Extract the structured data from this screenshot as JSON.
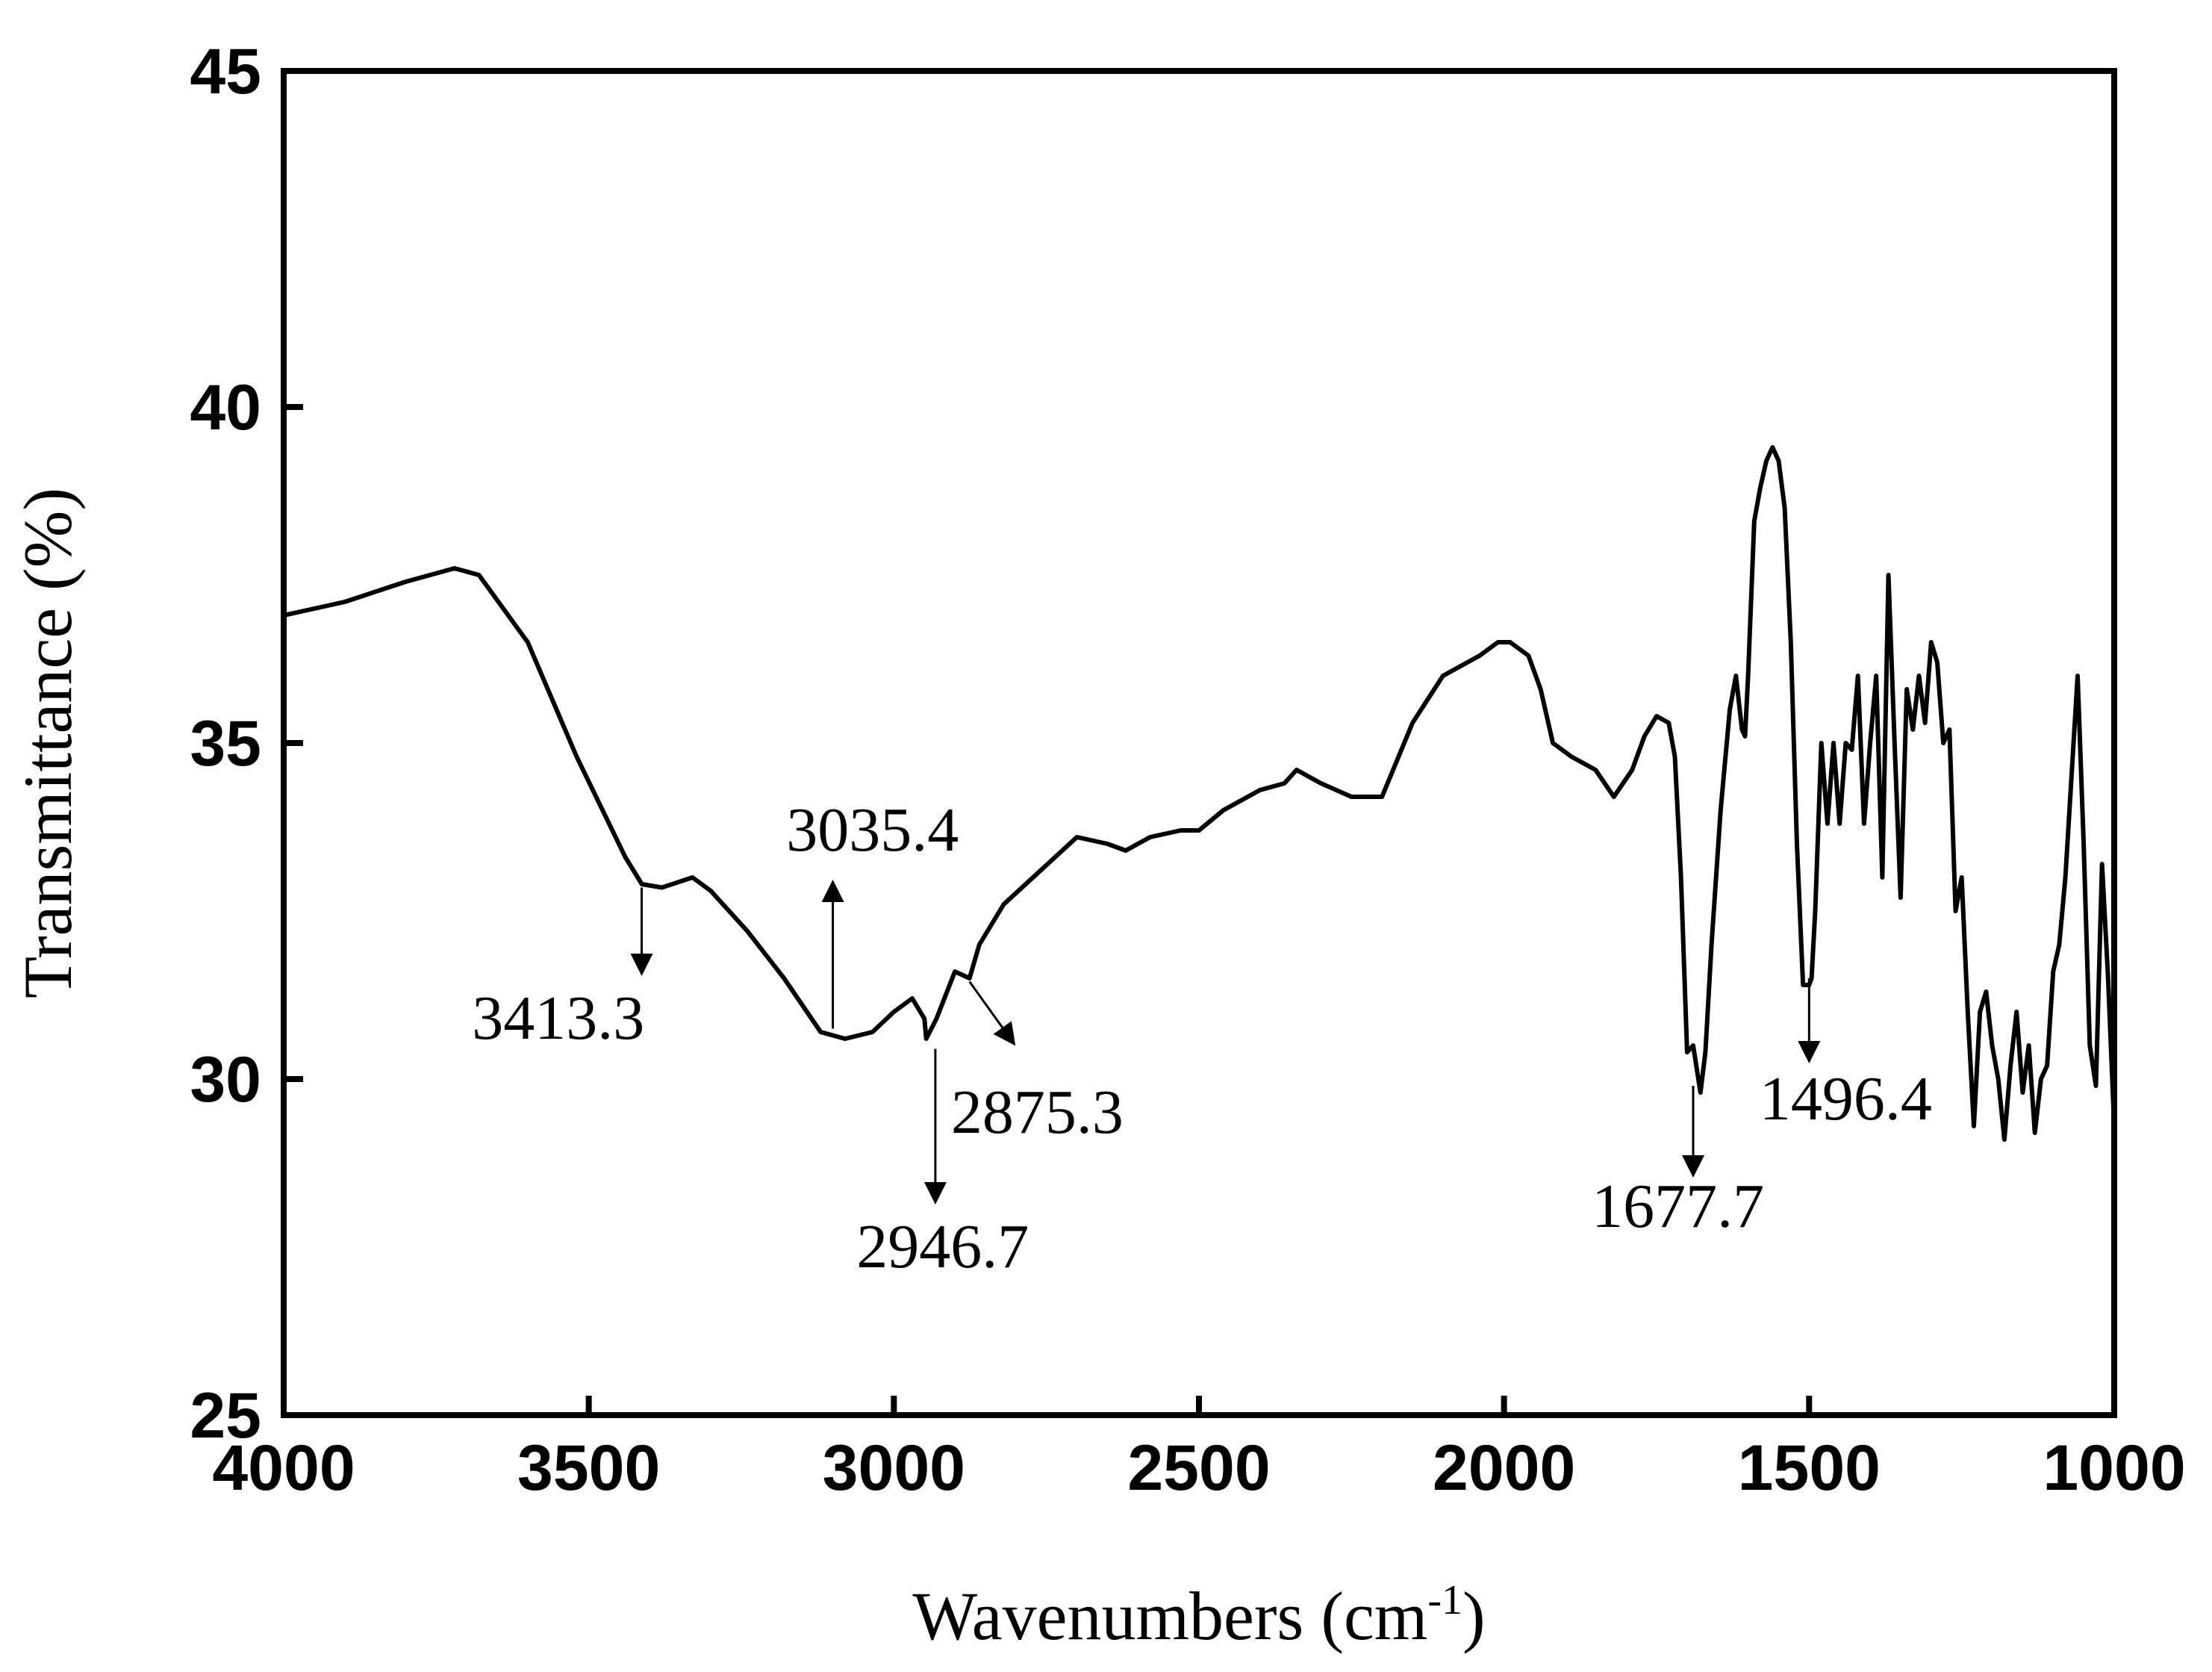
{
  "chart_data": {
    "type": "line",
    "title": "",
    "xlabel": "Wavenumbers (cm",
    "xlabel_sup": "-1",
    "xlabel_close": ")",
    "ylabel": "Transmittance (%)",
    "xlim": [
      4000,
      1000
    ],
    "ylim": [
      25,
      45
    ],
    "x_reversed": true,
    "grid": false,
    "legend": "none",
    "line_color": "#000000",
    "x_ticks": [
      4000,
      3500,
      3000,
      2500,
      2000,
      1500,
      1000
    ],
    "x_tick_labels": [
      "4000",
      "3500",
      "3000",
      "2500",
      "2000",
      "1500",
      "1000"
    ],
    "y_ticks": [
      25,
      30,
      35,
      40,
      45
    ],
    "y_tick_labels": [
      "25",
      "30",
      "35",
      "40",
      "45"
    ],
    "series": [
      {
        "x": [
          4000,
          3900,
          3800,
          3720,
          3680,
          3600,
          3520,
          3440,
          3413,
          3380,
          3330,
          3300,
          3240,
          3180,
          3120,
          3080,
          3035,
          3000,
          2970,
          2950,
          2947,
          2930,
          2900,
          2876,
          2860,
          2820,
          2760,
          2700,
          2650,
          2620,
          2580,
          2530,
          2500,
          2460,
          2420,
          2400,
          2360,
          2340,
          2300,
          2250,
          2200,
          2150,
          2100,
          2060,
          2040,
          2010,
          1990,
          1960,
          1940,
          1920,
          1890,
          1870,
          1850,
          1820,
          1790,
          1770,
          1750,
          1730,
          1720,
          1710,
          1700,
          1690,
          1678,
          1670,
          1660,
          1645,
          1630,
          1620,
          1610,
          1605,
          1600,
          1590,
          1580,
          1570,
          1560,
          1550,
          1540,
          1530,
          1520,
          1510,
          1500,
          1496,
          1490,
          1480,
          1470,
          1460,
          1450,
          1440,
          1430,
          1420,
          1410,
          1400,
          1390,
          1380,
          1370,
          1360,
          1350,
          1340,
          1330,
          1320,
          1310,
          1300,
          1290,
          1280,
          1270,
          1260,
          1250,
          1240,
          1230,
          1220,
          1210,
          1200,
          1190,
          1180,
          1170,
          1160,
          1150,
          1140,
          1130,
          1120,
          1110,
          1100,
          1090,
          1080,
          1070,
          1060,
          1050,
          1040,
          1030,
          1020,
          1010,
          1000
        ],
        "y": [
          36.9,
          37.1,
          37.4,
          37.6,
          37.5,
          36.5,
          34.8,
          33.3,
          32.9,
          32.85,
          33.0,
          32.8,
          32.2,
          31.5,
          30.7,
          30.6,
          30.7,
          31.0,
          31.2,
          30.9,
          30.6,
          30.9,
          31.6,
          31.5,
          32.0,
          32.6,
          33.1,
          33.6,
          33.5,
          33.4,
          33.6,
          33.7,
          33.7,
          34.0,
          34.2,
          34.3,
          34.4,
          34.6,
          34.4,
          34.2,
          34.2,
          35.3,
          36.0,
          36.2,
          36.3,
          36.5,
          36.5,
          36.3,
          35.8,
          35.0,
          34.8,
          34.7,
          34.6,
          34.2,
          34.6,
          35.1,
          35.4,
          35.3,
          34.8,
          33.0,
          30.4,
          30.5,
          29.8,
          30.4,
          32.0,
          34.0,
          35.5,
          36.0,
          35.2,
          35.1,
          36.0,
          38.3,
          38.8,
          39.2,
          39.4,
          39.2,
          38.5,
          36.5,
          33.5,
          31.4,
          31.4,
          31.5,
          32.5,
          35.0,
          33.8,
          35.0,
          33.8,
          35.0,
          34.9,
          36.0,
          33.8,
          35.0,
          36.0,
          33.0,
          37.5,
          35.0,
          32.7,
          35.8,
          35.2,
          36.0,
          35.3,
          36.5,
          36.2,
          35.0,
          35.2,
          32.5,
          33.0,
          31.0,
          29.3,
          31.0,
          31.3,
          30.5,
          30.0,
          29.1,
          30.2,
          31.0,
          29.8,
          30.5,
          29.2,
          30.0,
          30.2,
          31.6,
          32.0,
          33.0,
          34.5,
          36.0,
          33.5,
          30.5,
          29.9,
          33.2,
          31.5,
          29.3
        ]
      }
    ],
    "annotations": [
      {
        "label": "3413.3",
        "x": 3413.3,
        "y_from": 32.85,
        "y_to": 31.6,
        "label_x": 3550,
        "label_y": 30.6
      },
      {
        "label": "3035.4",
        "x": 3100,
        "y_from": 30.75,
        "y_to": 32.9,
        "label_x": 3035,
        "label_y": 33.4
      },
      {
        "label": "2875.3",
        "x_from": 2876,
        "y_from": 31.45,
        "x_to": 2805,
        "y_to": 30.55,
        "label_x": 2765,
        "label_y": 29.2
      },
      {
        "label": "2946.7",
        "x": 2932,
        "y_from": 30.45,
        "y_to": 28.2,
        "label_x": 2920,
        "label_y": 27.2
      },
      {
        "label": "1677.7",
        "x": 1690,
        "y_from": 29.9,
        "y_to": 28.6,
        "label_x": 1715,
        "label_y": 27.8
      },
      {
        "label": "1496.4",
        "x": 1500,
        "y_from": 31.5,
        "y_to": 30.3,
        "label_x": 1440,
        "label_y": 29.4
      }
    ]
  }
}
